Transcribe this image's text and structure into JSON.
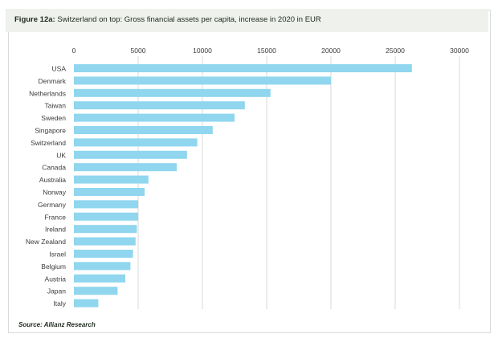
{
  "figure_label": "Figure 12a:",
  "chart_data": {
    "type": "bar",
    "orientation": "horizontal",
    "title": "Switzerland on top: Gross financial assets per capita, increase in 2020 in EUR",
    "categories": [
      "USA",
      "Denmark",
      "Netherlands",
      "Taiwan",
      "Sweden",
      "Singapore",
      "Switzerland",
      "UK",
      "Canada",
      "Australia",
      "Norway",
      "Germany",
      "France",
      "Ireland",
      "New Zealand",
      "Israel",
      "Belgium",
      "Austria",
      "Japan",
      "Italy"
    ],
    "values": [
      26300,
      20000,
      15300,
      13300,
      12500,
      10800,
      9600,
      8800,
      8000,
      5800,
      5500,
      5000,
      5000,
      4900,
      4800,
      4600,
      4400,
      4000,
      3400,
      1900
    ],
    "xlim": [
      0,
      31000
    ],
    "xticks": [
      0,
      5000,
      10000,
      15000,
      20000,
      25000,
      30000
    ],
    "xlabel": "",
    "ylabel": "",
    "grid": true,
    "bar_color": "#8fd6ee",
    "source": "Source: Allianz Research"
  }
}
